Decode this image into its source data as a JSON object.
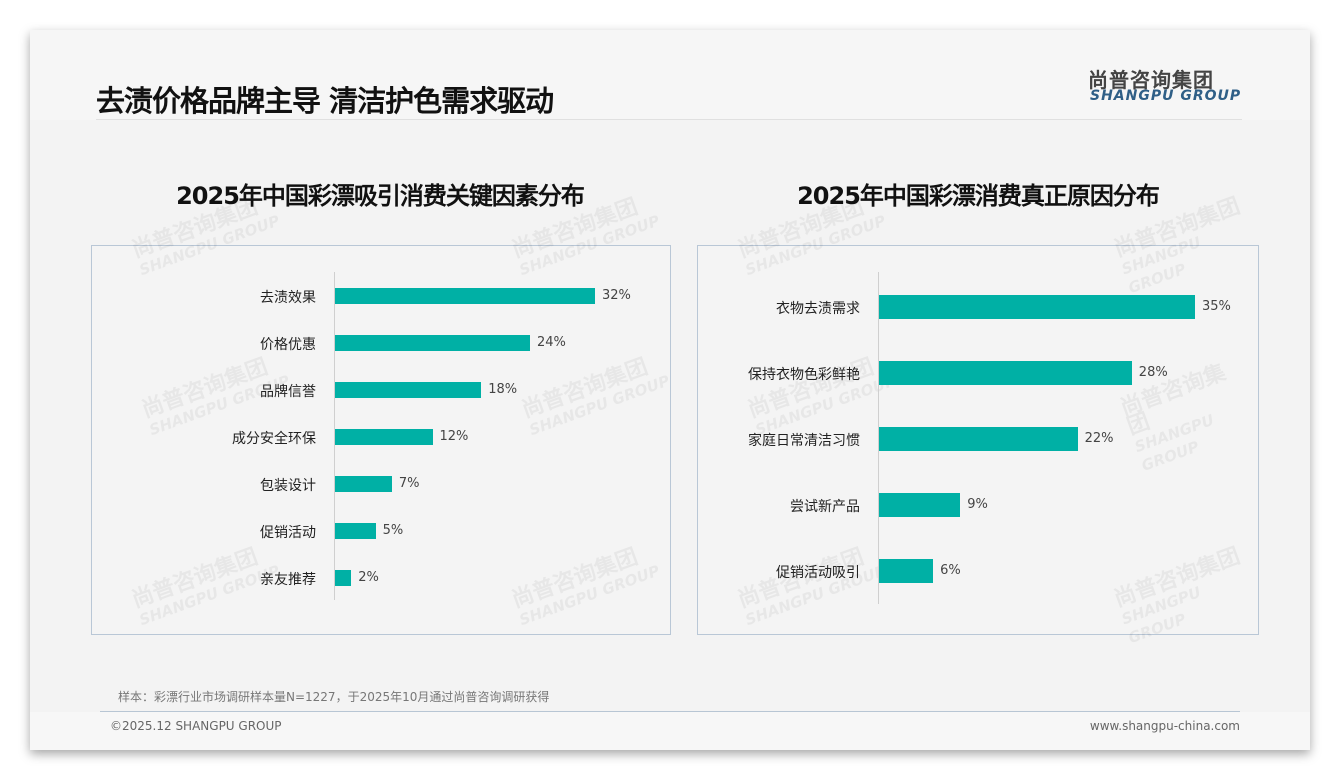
{
  "header": {
    "title": "去渍价格品牌主导 清洁护色需求驱动",
    "logo_cn": "尚普咨询集团",
    "logo_en": "SHANGPU GROUP"
  },
  "chart_data": [
    {
      "type": "bar",
      "orientation": "horizontal",
      "title": "2025年中国彩漂吸引消费关键因素分布",
      "categories": [
        "去渍效果",
        "价格优惠",
        "品牌信誉",
        "成分安全环保",
        "包装设计",
        "促销活动",
        "亲友推荐"
      ],
      "values": [
        32,
        24,
        18,
        12,
        7,
        5,
        2
      ],
      "labels": [
        "32%",
        "24%",
        "18%",
        "12%",
        "7%",
        "5%",
        "2%"
      ],
      "unit": "%",
      "color": "#00b0a5"
    },
    {
      "type": "bar",
      "orientation": "horizontal",
      "title": "2025年中国彩漂消费真正原因分布",
      "categories": [
        "衣物去渍需求",
        "保持衣物色彩鲜艳",
        "家庭日常清洁习惯",
        "尝试新产品",
        "促销活动吸引"
      ],
      "values": [
        35,
        28,
        22,
        9,
        6
      ],
      "labels": [
        "35%",
        "28%",
        "22%",
        "9%",
        "6%"
      ],
      "unit": "%",
      "color": "#00b0a5"
    }
  ],
  "footer": {
    "note": "样本：彩漂行业市场调研样本量N=1227，于2025年10月通过尚普咨询调研获得",
    "copyright": "©2025.12 SHANGPU GROUP",
    "url": "www.shangpu-china.com"
  }
}
